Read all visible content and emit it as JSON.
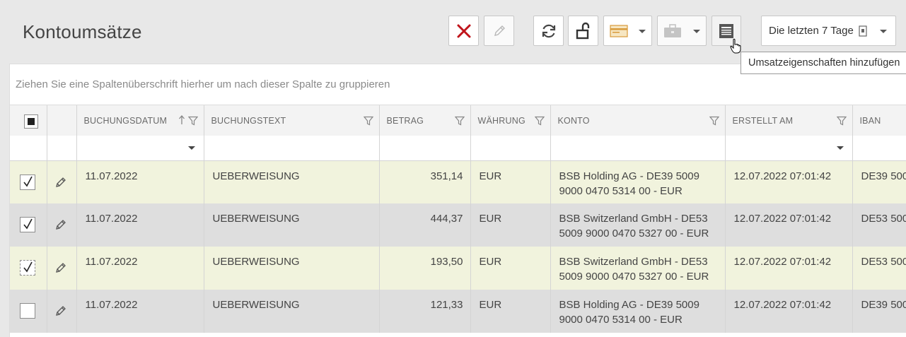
{
  "page_title": "Kontoumsätze",
  "toolbar": {
    "buttons": [
      {
        "name": "delete-button",
        "icon": "close-icon",
        "enabled": true
      },
      {
        "name": "edit-button",
        "icon": "pencil-icon",
        "enabled": false
      },
      {
        "name": "refresh-button",
        "icon": "refresh-icon",
        "enabled": true
      },
      {
        "name": "unlock-button",
        "icon": "unlock-icon",
        "enabled": true
      },
      {
        "name": "payment-menu",
        "icon": "card-icon",
        "enabled": true
      },
      {
        "name": "business-menu",
        "icon": "briefcase-icon",
        "enabled": false
      },
      {
        "name": "add-properties-button",
        "icon": "form-icon",
        "enabled": true
      }
    ],
    "date_range": "Die letzten 7 Tage",
    "tooltip": "Umsatzeigenschaften hinzufügen"
  },
  "group_panel_text": "Ziehen Sie eine Spaltenüberschrift hierher um nach dieser Spalte zu gruppieren",
  "columns": [
    "BUCHUNGSDATUM",
    "BUCHUNGSTEXT",
    "BETRAG",
    "WÄHRUNG",
    "KONTO",
    "ERSTELLT AM",
    "IBAN"
  ],
  "rows": [
    {
      "checked": true,
      "buchungsdatum": "11.07.2022",
      "buchungstext": "UEBERWEISUNG",
      "betrag": "351,14",
      "waehrung": "EUR",
      "konto": "BSB Holding AG - DE39 5009 9000 0470 5314 00 - EUR",
      "erstellt_am": "12.07.2022 07:01:42",
      "iban": "DE39 500"
    },
    {
      "checked": true,
      "buchungsdatum": "11.07.2022",
      "buchungstext": "UEBERWEISUNG",
      "betrag": "444,37",
      "waehrung": "EUR",
      "konto": "BSB Switzerland GmbH - DE53 5009 9000 0470 5327 00 - EUR",
      "erstellt_am": "12.07.2022 07:01:42",
      "iban": "DE53 500"
    },
    {
      "checked": true,
      "buchungsdatum": "11.07.2022",
      "buchungstext": "UEBERWEISUNG",
      "betrag": "193,50",
      "waehrung": "EUR",
      "konto": "BSB Switzerland GmbH - DE53 5009 9000 0470 5327 00 - EUR",
      "erstellt_am": "12.07.2022 07:01:42",
      "iban": "DE53 500"
    },
    {
      "checked": false,
      "buchungsdatum": "11.07.2022",
      "buchungstext": "UEBERWEISUNG",
      "betrag": "121,33",
      "waehrung": "EUR",
      "konto": "BSB Holding AG - DE39 5009 9000 0470 5314 00 - EUR",
      "erstellt_am": "12.07.2022 07:01:42",
      "iban": "DE39 500"
    }
  ],
  "colors": {
    "accent_delete": "#c0141b",
    "row_selected": "#f1f3dd",
    "row_alt": "#dedede"
  }
}
